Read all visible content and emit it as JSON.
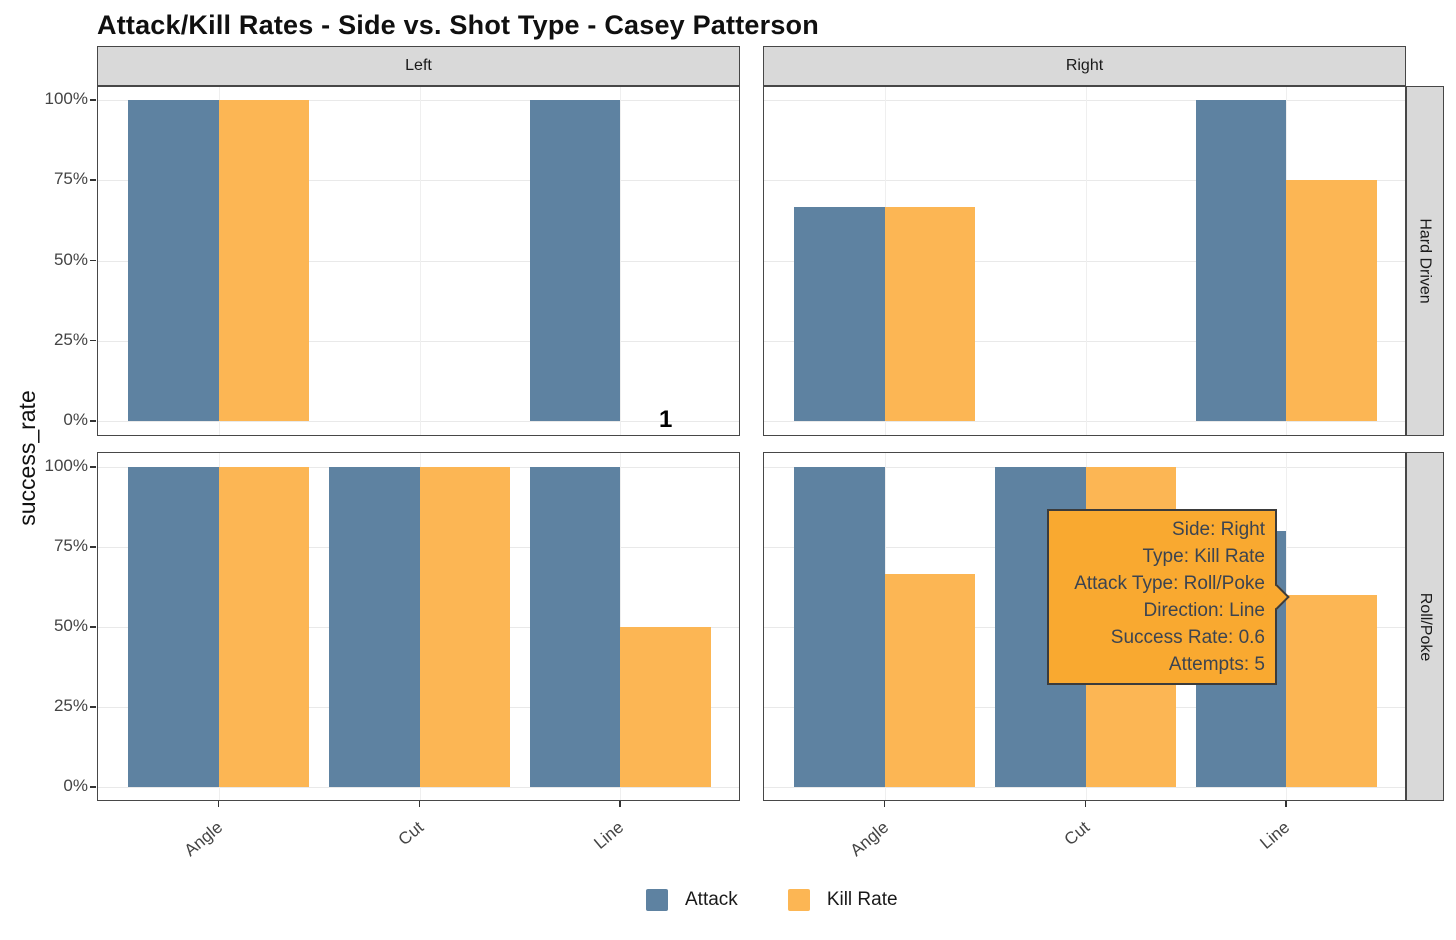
{
  "chart_data": {
    "type": "bar",
    "title": "Attack/Kill Rates - Side vs. Shot Type - Casey Patterson",
    "ylabel": "success_rate",
    "xlabel": "",
    "categories": [
      "Angle",
      "Cut",
      "Line"
    ],
    "y_tick_labels": [
      "0%",
      "25%",
      "50%",
      "75%",
      "100%"
    ],
    "ylim": [
      0,
      1.05
    ],
    "grid": true,
    "facet_columns": [
      "Left",
      "Right"
    ],
    "facet_rows": [
      "Hard Driven",
      "Roll/Poke"
    ],
    "series_names": [
      "Attack",
      "Kill Rate"
    ],
    "panels": [
      {
        "facet_col": "Left",
        "facet_row": "Hard Driven",
        "series": [
          {
            "name": "Attack",
            "values": [
              1.0,
              null,
              1.0
            ]
          },
          {
            "name": "Kill Rate",
            "values": [
              1.0,
              null,
              null
            ]
          }
        ],
        "annotations": [
          {
            "text": "1",
            "category": "Line",
            "slot": "Kill Rate",
            "y": 0
          }
        ]
      },
      {
        "facet_col": "Right",
        "facet_row": "Hard Driven",
        "series": [
          {
            "name": "Attack",
            "values": [
              0.667,
              null,
              1.0
            ]
          },
          {
            "name": "Kill Rate",
            "values": [
              0.667,
              null,
              0.75
            ]
          }
        ],
        "annotations": []
      },
      {
        "facet_col": "Left",
        "facet_row": "Roll/Poke",
        "series": [
          {
            "name": "Attack",
            "values": [
              1.0,
              1.0,
              1.0
            ]
          },
          {
            "name": "Kill Rate",
            "values": [
              1.0,
              1.0,
              0.5
            ]
          }
        ],
        "annotations": []
      },
      {
        "facet_col": "Right",
        "facet_row": "Roll/Poke",
        "series": [
          {
            "name": "Attack",
            "values": [
              1.0,
              1.0,
              0.8
            ]
          },
          {
            "name": "Kill Rate",
            "values": [
              0.667,
              1.0,
              0.6
            ]
          }
        ],
        "annotations": []
      }
    ],
    "legend": {
      "position": "bottom",
      "items": [
        {
          "label": "Attack",
          "color": "#5E82A1"
        },
        {
          "label": "Kill Rate",
          "color": "#FCB654"
        }
      ]
    }
  },
  "tooltip": {
    "lines": [
      "Side: Right",
      "Type: Kill Rate",
      "Attack Type: Roll/Poke",
      "Direction: Line",
      "Success Rate: 0.6",
      "Attempts: 5"
    ],
    "bg_color": "#F9A930",
    "border_color": "#3B3B3B",
    "text_color": "#3C4450"
  },
  "colors": {
    "attack_bar": "#5E82A1",
    "kill_rate_bar": "#FCB654",
    "grid_major": "#E9E9E9",
    "panel_border": "#474747",
    "strip_background": "#D9D9D9"
  }
}
